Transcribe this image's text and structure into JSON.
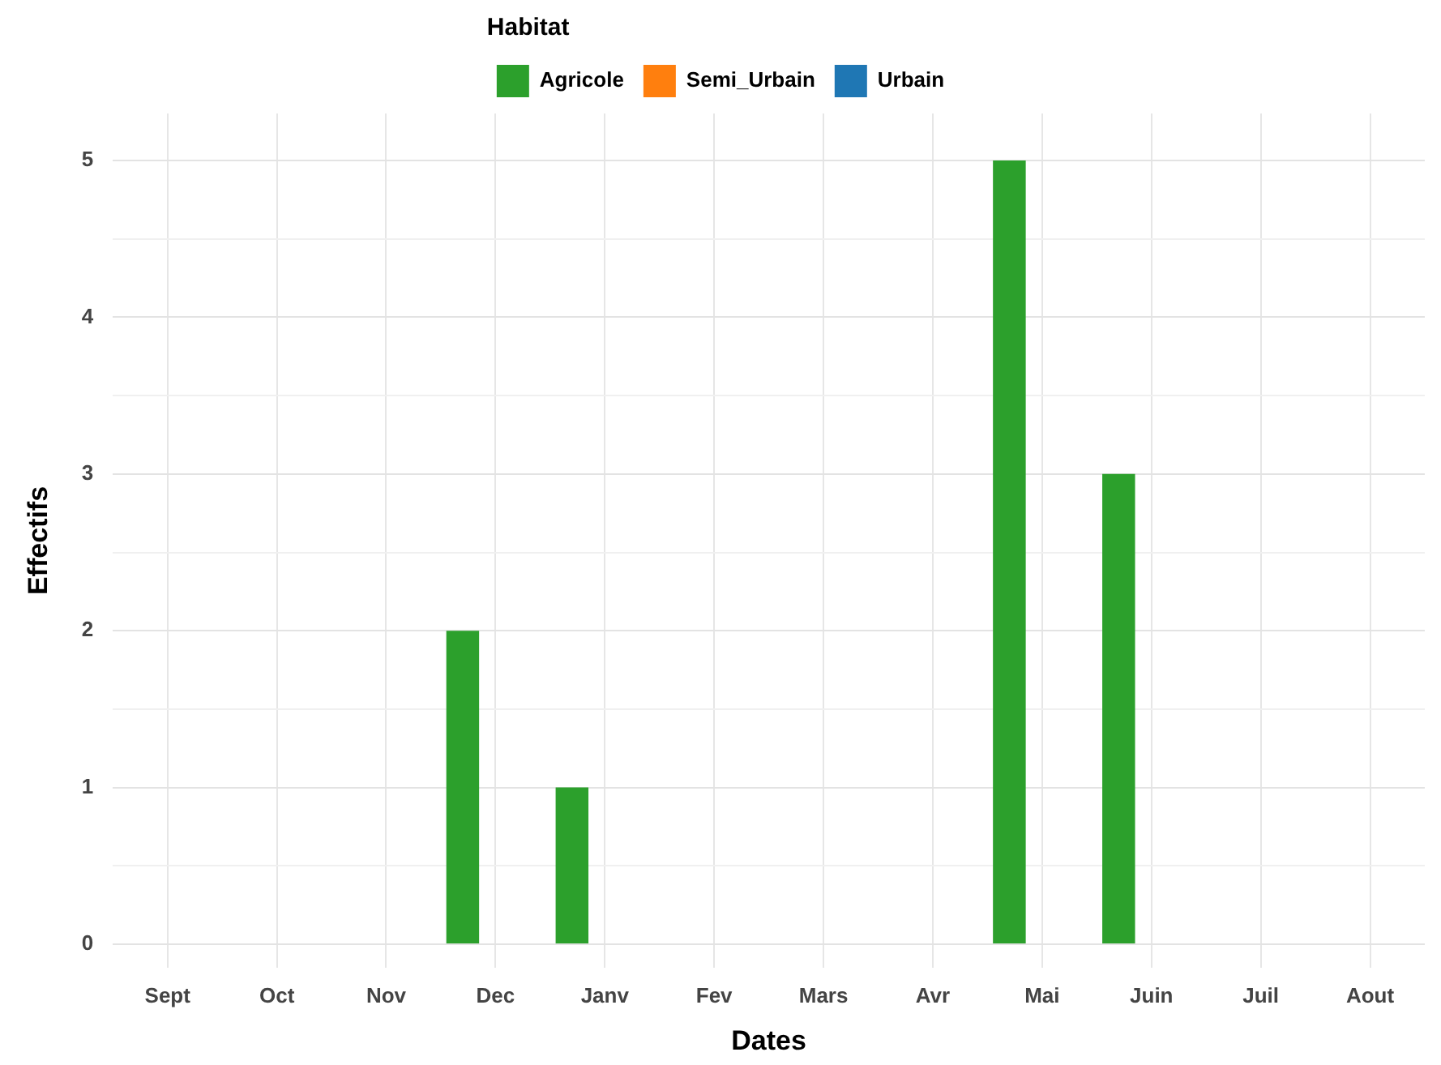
{
  "chart_data": {
    "type": "bar",
    "xlabel": "Dates",
    "ylabel": "Effectifs",
    "legend_title": "Habitat",
    "categories": [
      "Sept",
      "Oct",
      "Nov",
      "Dec",
      "Janv",
      "Fev",
      "Mars",
      "Avr",
      "Mai",
      "Juin",
      "Juil",
      "Aout"
    ],
    "series": [
      {
        "name": "Agricole",
        "color": "#2ca02c",
        "values": [
          null,
          null,
          null,
          2,
          1,
          null,
          null,
          null,
          5,
          3,
          null,
          null
        ]
      },
      {
        "name": "Semi_Urbain",
        "color": "#ff7f0e",
        "values": [
          null,
          null,
          null,
          null,
          null,
          null,
          null,
          null,
          null,
          null,
          null,
          null
        ]
      },
      {
        "name": "Urbain",
        "color": "#1f77b4",
        "values": [
          null,
          null,
          null,
          null,
          null,
          null,
          null,
          null,
          null,
          null,
          null,
          null
        ]
      }
    ],
    "ylim": [
      -0.15,
      5.3
    ],
    "yticks": [
      0,
      {
        "value": 0.5,
        "label": null
      },
      1,
      {
        "value": 1.5,
        "label": null
      },
      2,
      {
        "value": 2.5,
        "label": null
      },
      3,
      {
        "value": 3.5,
        "label": null
      },
      4,
      {
        "value": 4.5,
        "label": null
      },
      5
    ],
    "grid": true,
    "legend": "top"
  }
}
